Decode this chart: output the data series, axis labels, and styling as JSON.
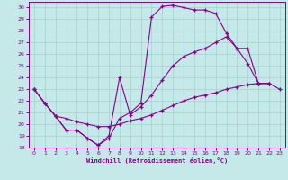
{
  "xlabel": "Windchill (Refroidissement éolien,°C)",
  "bg_color": "#c5e8e8",
  "line_color": "#880088",
  "grid_color": "#aad4d4",
  "xlim": [
    -0.5,
    23.5
  ],
  "ylim": [
    18,
    30.5
  ],
  "xticks": [
    0,
    1,
    2,
    3,
    4,
    5,
    6,
    7,
    8,
    9,
    10,
    11,
    12,
    13,
    14,
    15,
    16,
    17,
    18,
    19,
    20,
    21,
    22,
    23
  ],
  "yticks": [
    18,
    19,
    20,
    21,
    22,
    23,
    24,
    25,
    26,
    27,
    28,
    29,
    30
  ],
  "series1_x": [
    0,
    1,
    2,
    3,
    4,
    5,
    6,
    7,
    8,
    9,
    10,
    11,
    12,
    13,
    14,
    15,
    16,
    17,
    18,
    19,
    20,
    21,
    22
  ],
  "series1_y": [
    23.0,
    21.8,
    20.7,
    19.5,
    19.5,
    18.8,
    18.2,
    18.8,
    20.5,
    21.0,
    21.8,
    29.2,
    30.1,
    30.2,
    30.0,
    29.8,
    29.8,
    29.5,
    27.8,
    26.5,
    25.2,
    23.5,
    23.5
  ],
  "series2_x": [
    0,
    1,
    2,
    3,
    4,
    5,
    6,
    7,
    8,
    9,
    10,
    11,
    12,
    13,
    14,
    15,
    16,
    17,
    18,
    19,
    20,
    21,
    22,
    23
  ],
  "series2_y": [
    23.0,
    21.8,
    20.7,
    20.5,
    20.2,
    20.0,
    19.8,
    19.8,
    20.0,
    20.3,
    20.5,
    20.8,
    21.2,
    21.6,
    22.0,
    22.3,
    22.5,
    22.7,
    23.0,
    23.2,
    23.4,
    23.5,
    23.5,
    23.0
  ],
  "series3_x": [
    0,
    1,
    2,
    3,
    4,
    5,
    6,
    7,
    8,
    9,
    10,
    11,
    12,
    13,
    14,
    15,
    16,
    17,
    18,
    19,
    20,
    21,
    22
  ],
  "series3_y": [
    23.0,
    21.8,
    20.7,
    19.5,
    19.5,
    18.8,
    18.2,
    19.0,
    24.0,
    20.8,
    21.5,
    22.5,
    23.8,
    25.0,
    25.8,
    26.2,
    26.5,
    27.0,
    27.5,
    26.5,
    26.5,
    23.5,
    23.5
  ]
}
